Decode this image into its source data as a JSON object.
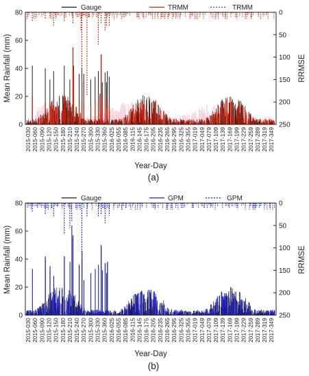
{
  "chart_data": [
    {
      "panel_label": "(a)",
      "type": "line",
      "ylabel": "Mean Rainfall (mm)",
      "y2label": "RRMSE",
      "xlabel": "Year-Day",
      "ylim": [
        0,
        80
      ],
      "y2lim": [
        250,
        0
      ],
      "yticks": [
        "0",
        "20",
        "40",
        "60",
        "80"
      ],
      "y2ticks": [
        "0",
        "50",
        "100",
        "150",
        "200",
        "250"
      ],
      "x_ticks": [
        "2015-030",
        "2015-060",
        "2015-090",
        "2015-120",
        "2015-150",
        "2015-180",
        "2015-210",
        "2015-240",
        "2015-270",
        "2015-300",
        "2015-330",
        "2015-360",
        "2016-025",
        "2016-055",
        "2016-085",
        "2016-115",
        "2016-145",
        "2016-175",
        "2016-205",
        "2016-235",
        "2016-265",
        "2016-295",
        "2016-325",
        "2016-355",
        "2017-019",
        "2017-049",
        "2017-079",
        "2017-109",
        "2017-139",
        "2017-169",
        "2017-199",
        "2017-229",
        "2017-259",
        "2017-289",
        "2017-319",
        "2017-349"
      ],
      "legend_position": "top",
      "series": [
        {
          "name": "Gauge",
          "axis": "left",
          "style": "solid",
          "color": "#1a1a1a",
          "values": [
            [
              48,
              42
            ],
            [
              104,
              40
            ],
            [
              124,
              32
            ],
            [
              140,
              38
            ],
            [
              186,
              42
            ],
            [
              210,
              32
            ],
            [
              223,
              55
            ],
            [
              226,
              42
            ],
            [
              250,
              36
            ],
            [
              262,
              40
            ],
            [
              270,
              36
            ],
            [
              300,
              32
            ],
            [
              319,
              34
            ],
            [
              333,
              38
            ],
            [
              340,
              22
            ],
            [
              345,
              50
            ],
            [
              350,
              30
            ],
            [
              362,
              37
            ],
            [
              368,
              30
            ],
            [
              372,
              38
            ],
            [
              380,
              34
            ]
          ]
        },
        {
          "name": "TRMM",
          "axis": "left",
          "style": "solid",
          "color": "#d81e05",
          "values": [
            [
              48,
              20
            ],
            [
              104,
              16
            ],
            [
              124,
              12
            ],
            [
              140,
              18
            ],
            [
              186,
              20
            ],
            [
              210,
              14
            ],
            [
              223,
              55
            ],
            [
              226,
              37
            ],
            [
              250,
              16
            ],
            [
              262,
              30
            ],
            [
              270,
              14
            ],
            [
              300,
              12
            ],
            [
              319,
              16
            ],
            [
              333,
              20
            ],
            [
              340,
              10
            ],
            [
              345,
              50
            ],
            [
              350,
              18
            ],
            [
              362,
              22
            ],
            [
              368,
              12
            ],
            [
              372,
              16
            ],
            [
              380,
              14
            ]
          ]
        },
        {
          "name": "TRMM",
          "axis": "right",
          "style": "dashed",
          "color": "#b42d14",
          "values": [
            [
              48,
              20
            ],
            [
              104,
              15
            ],
            [
              124,
              12
            ],
            [
              140,
              30
            ],
            [
              186,
              20
            ],
            [
              223,
              25
            ],
            [
              258,
              42
            ],
            [
              262,
              200
            ],
            [
              284,
              186
            ],
            [
              333,
              74
            ],
            [
              345,
              24
            ],
            [
              362,
              42
            ],
            [
              368,
              30
            ],
            [
              380,
              32
            ]
          ]
        }
      ]
    },
    {
      "panel_label": "(b)",
      "type": "line",
      "ylabel": "Mean Rainfall (mm)",
      "y2label": "RRMSE",
      "xlabel": "Year-Day",
      "ylim": [
        0,
        80
      ],
      "y2lim": [
        250,
        0
      ],
      "yticks": [
        "0",
        "20",
        "40",
        "60",
        "80"
      ],
      "y2ticks": [
        "0",
        "50",
        "100",
        "150",
        "200",
        "250"
      ],
      "x_ticks": [
        "2015-030",
        "2015-060",
        "2015-090",
        "2015-120",
        "2015-150",
        "2015-180",
        "2015-210",
        "2015-240",
        "2015-270",
        "2015-300",
        "2015-330",
        "2015-360",
        "2016-025",
        "2016-055",
        "2016-085",
        "2016-115",
        "2016-145",
        "2016-175",
        "2016-205",
        "2016-235",
        "2016-265",
        "2016-295",
        "2016-325",
        "2016-355",
        "2017-019",
        "2017-049",
        "2017-079",
        "2017-109",
        "2017-139",
        "2017-169",
        "2017-199",
        "2017-229",
        "2017-259",
        "2017-289",
        "2017-319",
        "2017-349"
      ],
      "legend_position": "top",
      "series": [
        {
          "name": "Gauge",
          "axis": "left",
          "style": "solid",
          "color": "#1a1a1a",
          "values": [
            [
              104,
              42
            ],
            [
              124,
              32
            ],
            [
              186,
              42
            ],
            [
              223,
              55
            ],
            [
              250,
              36
            ],
            [
              262,
              40
            ],
            [
              345,
              50
            ],
            [
              362,
              37
            ],
            [
              372,
              38
            ]
          ]
        },
        {
          "name": "GPM",
          "axis": "left",
          "style": "solid",
          "color": "#1f1fc8",
          "values": [
            [
              48,
              33
            ],
            [
              104,
              40
            ],
            [
              124,
              35
            ],
            [
              140,
              28
            ],
            [
              186,
              42
            ],
            [
              210,
              38
            ],
            [
              218,
              64
            ],
            [
              223,
              57
            ],
            [
              250,
              35
            ],
            [
              262,
              46
            ],
            [
              270,
              25
            ],
            [
              300,
              30
            ],
            [
              319,
              33
            ],
            [
              333,
              36
            ],
            [
              345,
              49
            ],
            [
              350,
              32
            ],
            [
              362,
              37
            ],
            [
              368,
              30
            ],
            [
              372,
              38
            ]
          ]
        },
        {
          "name": "GPM",
          "axis": "right",
          "style": "dashed",
          "color": "#1f1fc8",
          "values": [
            [
              48,
              20
            ],
            [
              104,
              25
            ],
            [
              140,
              30
            ],
            [
              186,
              70
            ],
            [
              210,
              55
            ],
            [
              218,
              40
            ],
            [
              262,
              140
            ],
            [
              284,
              30
            ],
            [
              333,
              30
            ],
            [
              345,
              26
            ],
            [
              362,
              45
            ],
            [
              380,
              28
            ]
          ]
        }
      ]
    }
  ]
}
